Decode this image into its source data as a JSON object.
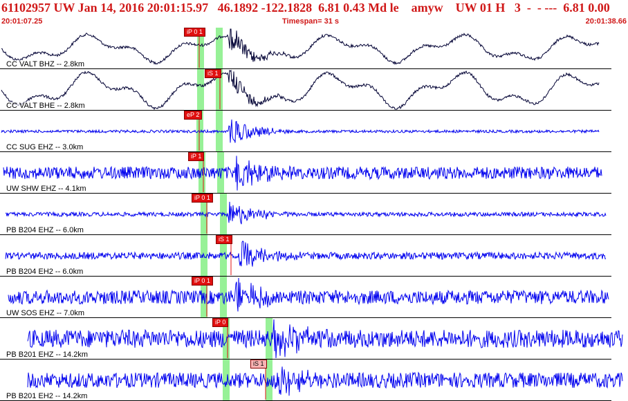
{
  "header": {
    "title": "61102957 UW Jan 14, 2016 20:01:15.97   46.1892 -122.1828  6.81 0.43 Md le    amyw    UW 01 H   3  -  - ---  6.81 0.00",
    "start_time": "20:01:07.25",
    "timespan": "Timespan=  31 s",
    "end_time": "20:01:38.66"
  },
  "traces": [
    {
      "label": "CC VALT BHZ -- 2.8km",
      "color": "#000033",
      "picks": [
        {
          "text": "iP 0 1",
          "light": false
        }
      ]
    },
    {
      "label": "CC VALT BHE -- 2.8km",
      "color": "#000033",
      "picks": [
        {
          "text": "iS 1",
          "light": false
        }
      ]
    },
    {
      "label": "CC SUG EHZ -- 3.0km",
      "color": "#0000ee",
      "picks": [
        {
          "text": "eP 2",
          "light": false
        }
      ]
    },
    {
      "label": "UW SHW EHZ -- 4.1km",
      "color": "#0000ee",
      "picks": [
        {
          "text": "iP 1",
          "light": false
        }
      ]
    },
    {
      "label": "PB B204 EHZ -- 6.0km",
      "color": "#0000ee",
      "picks": [
        {
          "text": "iP 0 1",
          "light": false
        }
      ]
    },
    {
      "label": "PB B204 EH2 -- 6.0km",
      "color": "#0000ee",
      "picks": [
        {
          "text": "iS 1",
          "light": false
        }
      ]
    },
    {
      "label": "UW SOS EHZ -- 7.0km",
      "color": "#0000ee",
      "picks": [
        {
          "text": "iP 0 1",
          "light": false
        }
      ]
    },
    {
      "label": "PB B201 EHZ -- 14.2km",
      "color": "#0000ee",
      "picks": [
        {
          "text": "iP 0",
          "light": false
        }
      ]
    },
    {
      "label": "PB B201 EH2 -- 14.2km",
      "color": "#0000ee",
      "picks": [
        {
          "text": "iS 1",
          "light": true
        }
      ]
    }
  ]
}
